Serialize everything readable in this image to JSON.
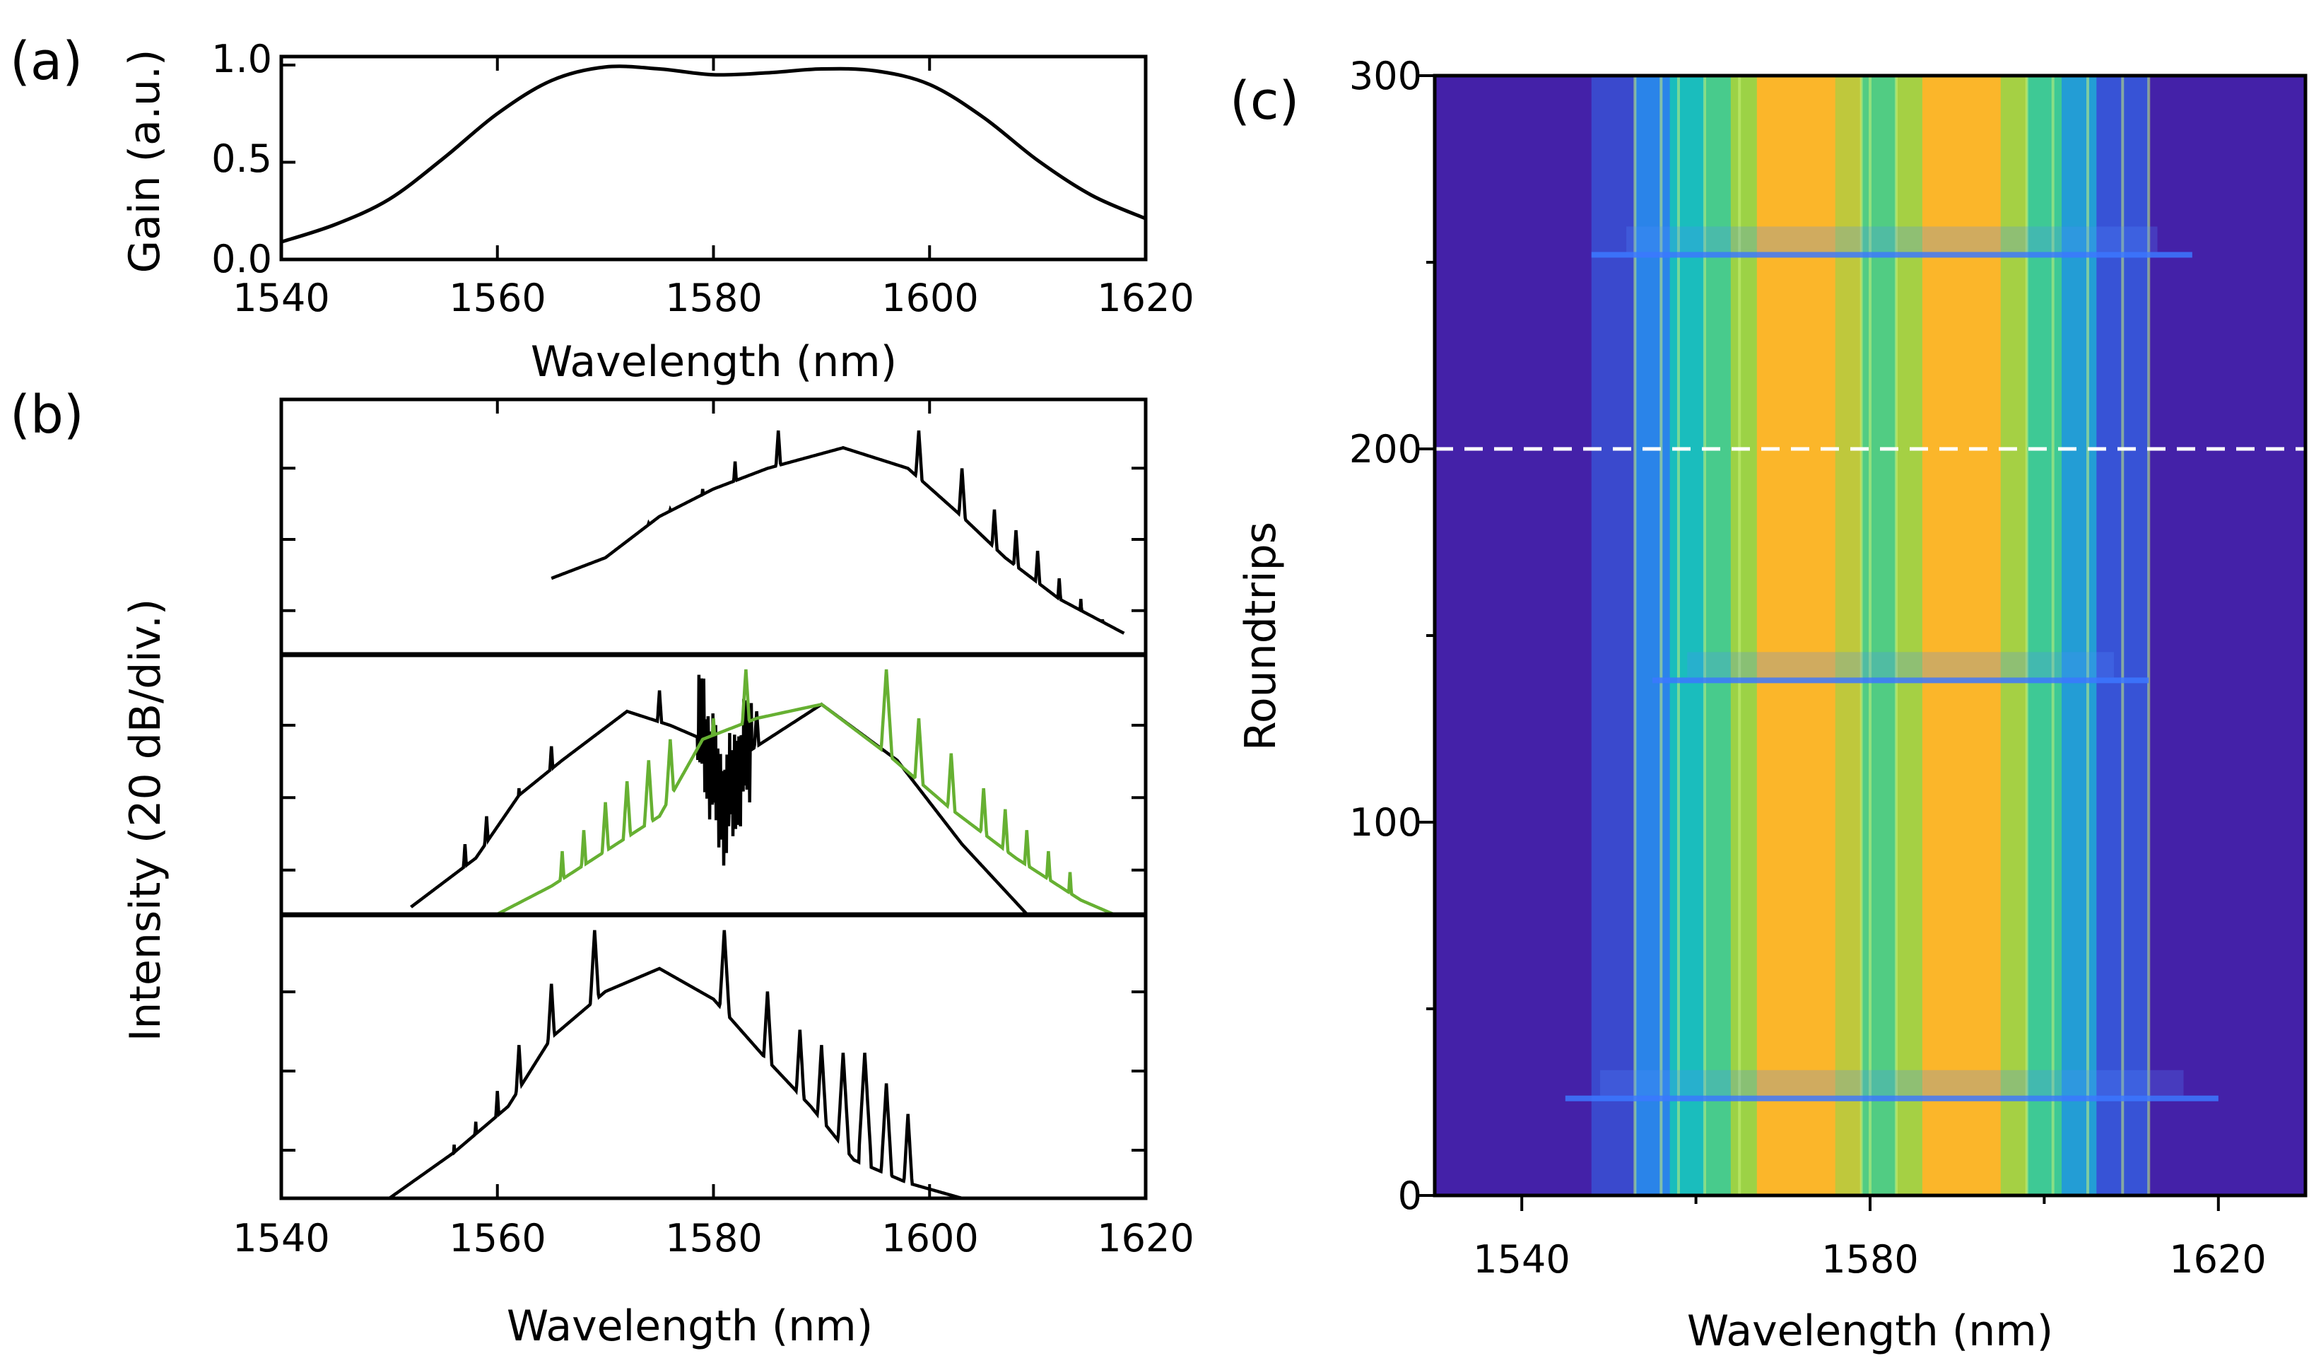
{
  "chart_data": [
    {
      "id": "a",
      "panel_label": "(a)",
      "type": "line",
      "xlabel": "Wavelength (nm)",
      "ylabel": "Gain (a.u.)",
      "xlim": [
        1540,
        1620
      ],
      "ylim": [
        0,
        1.0
      ],
      "xticks": [
        "1540",
        "1560",
        "1580",
        "1600",
        "1620"
      ],
      "yticks": [
        "0.0",
        "0.5",
        "1.0"
      ],
      "series": [
        {
          "name": "gain",
          "color": "#000000",
          "x": [
            1540,
            1545,
            1550,
            1555,
            1560,
            1565,
            1570,
            1575,
            1580,
            1585,
            1590,
            1595,
            1600,
            1605,
            1610,
            1615,
            1620
          ],
          "y": [
            0.09,
            0.18,
            0.31,
            0.52,
            0.75,
            0.92,
            0.99,
            0.98,
            0.95,
            0.96,
            0.98,
            0.97,
            0.9,
            0.73,
            0.51,
            0.33,
            0.21
          ]
        }
      ]
    },
    {
      "id": "b",
      "panel_label": "(b)",
      "type": "line",
      "xlabel": "Wavelength (nm)",
      "ylabel": "Intensity (20 dB/div.)",
      "xlim": [
        1540,
        1620
      ],
      "xticks": [
        "1540",
        "1560",
        "1580",
        "1600",
        "1620"
      ],
      "subplots": [
        {
          "name": "top",
          "series": [
            {
              "name": "spectrum",
              "color": "#000000",
              "envelope": [
                {
                  "x": 1565,
                  "y": -1.9
                },
                {
                  "x": 1570,
                  "y": -1.6
                },
                {
                  "x": 1575,
                  "y": -1.0
                },
                {
                  "x": 1580,
                  "y": -0.6
                },
                {
                  "x": 1585,
                  "y": -0.3
                },
                {
                  "x": 1592,
                  "y": 0.0
                },
                {
                  "x": 1598,
                  "y": -0.3
                },
                {
                  "x": 1603,
                  "y": -1.0
                },
                {
                  "x": 1607,
                  "y": -1.6
                },
                {
                  "x": 1612,
                  "y": -2.2
                },
                {
                  "x": 1618,
                  "y": -2.7
                }
              ],
              "peaks": [
                {
                  "x": 1586,
                  "y": 0.25
                },
                {
                  "x": 1599,
                  "y": 0.25
                },
                {
                  "x": 1582,
                  "y": -0.2
                },
                {
                  "x": 1603,
                  "y": -0.3
                },
                {
                  "x": 1579,
                  "y": -0.6
                },
                {
                  "x": 1606,
                  "y": -0.9
                },
                {
                  "x": 1576,
                  "y": -0.9
                },
                {
                  "x": 1608,
                  "y": -1.2
                },
                {
                  "x": 1574,
                  "y": -1.1
                },
                {
                  "x": 1610,
                  "y": -1.5
                },
                {
                  "x": 1572,
                  "y": -1.5
                },
                {
                  "x": 1612,
                  "y": -1.9
                },
                {
                  "x": 1570,
                  "y": -1.8
                },
                {
                  "x": 1614,
                  "y": -2.2
                },
                {
                  "x": 1568,
                  "y": -2.1
                },
                {
                  "x": 1616,
                  "y": -2.5
                }
              ]
            }
          ]
        },
        {
          "name": "middle",
          "series": [
            {
              "name": "black spectrum",
              "color": "#000000",
              "envelope": [
                {
                  "x": 1552,
                  "y": -2.9
                },
                {
                  "x": 1558,
                  "y": -2.2
                },
                {
                  "x": 1562,
                  "y": -1.3
                },
                {
                  "x": 1566,
                  "y": -0.8
                },
                {
                  "x": 1572,
                  "y": -0.1
                },
                {
                  "x": 1576,
                  "y": -0.3
                },
                {
                  "x": 1579,
                  "y": -0.5
                },
                {
                  "x": 1581,
                  "y": -1.5
                },
                {
                  "x": 1583,
                  "y": -0.7
                },
                {
                  "x": 1590,
                  "y": 0.0
                },
                {
                  "x": 1597,
                  "y": -0.8
                },
                {
                  "x": 1603,
                  "y": -2.0
                },
                {
                  "x": 1609,
                  "y": -3.0
                }
              ],
              "peaks": [
                {
                  "x": 1557,
                  "y": -2.0
                },
                {
                  "x": 1559,
                  "y": -1.6
                },
                {
                  "x": 1562,
                  "y": -1.2
                },
                {
                  "x": 1565,
                  "y": -0.6
                },
                {
                  "x": 1575,
                  "y": 0.2
                },
                {
                  "x": 1579,
                  "y": 0.0
                },
                {
                  "x": 1584,
                  "y": -0.1
                }
              ]
            },
            {
              "name": "green spectrum",
              "color": "#66b032",
              "envelope": [
                {
                  "x": 1560,
                  "y": -3.0
                },
                {
                  "x": 1565,
                  "y": -2.6
                },
                {
                  "x": 1570,
                  "y": -2.1
                },
                {
                  "x": 1575,
                  "y": -1.6
                },
                {
                  "x": 1579,
                  "y": -0.5
                },
                {
                  "x": 1584,
                  "y": -0.2
                },
                {
                  "x": 1590,
                  "y": 0.0
                },
                {
                  "x": 1596,
                  "y": -0.7
                },
                {
                  "x": 1602,
                  "y": -1.5
                },
                {
                  "x": 1608,
                  "y": -2.2
                },
                {
                  "x": 1614,
                  "y": -2.8
                },
                {
                  "x": 1617,
                  "y": -3.0
                }
              ],
              "peaks": [
                {
                  "x": 1583,
                  "y": 0.5
                },
                {
                  "x": 1596,
                  "y": 0.5
                },
                {
                  "x": 1580,
                  "y": -0.2
                },
                {
                  "x": 1599,
                  "y": -0.2
                },
                {
                  "x": 1576,
                  "y": -0.5
                },
                {
                  "x": 1602,
                  "y": -0.7
                },
                {
                  "x": 1574,
                  "y": -0.8
                },
                {
                  "x": 1605,
                  "y": -1.2
                },
                {
                  "x": 1572,
                  "y": -1.1
                },
                {
                  "x": 1607,
                  "y": -1.5
                },
                {
                  "x": 1570,
                  "y": -1.4
                },
                {
                  "x": 1609,
                  "y": -1.8
                },
                {
                  "x": 1568,
                  "y": -1.8
                },
                {
                  "x": 1611,
                  "y": -2.1
                },
                {
                  "x": 1566,
                  "y": -2.1
                },
                {
                  "x": 1613,
                  "y": -2.4
                }
              ]
            }
          ]
        },
        {
          "name": "bottom",
          "series": [
            {
              "name": "spectrum",
              "color": "#000000",
              "envelope": [
                {
                  "x": 1550,
                  "y": -3.0
                },
                {
                  "x": 1556,
                  "y": -2.4
                },
                {
                  "x": 1561,
                  "y": -1.8
                },
                {
                  "x": 1565,
                  "y": -0.9
                },
                {
                  "x": 1570,
                  "y": -0.3
                },
                {
                  "x": 1575,
                  "y": 0.0
                },
                {
                  "x": 1580,
                  "y": -0.4
                },
                {
                  "x": 1585,
                  "y": -1.2
                },
                {
                  "x": 1589,
                  "y": -1.8
                },
                {
                  "x": 1593,
                  "y": -2.5
                },
                {
                  "x": 1598,
                  "y": -2.8
                },
                {
                  "x": 1603,
                  "y": -3.0
                }
              ],
              "peaks": [
                {
                  "x": 1569,
                  "y": 0.5
                },
                {
                  "x": 1581,
                  "y": 0.5
                },
                {
                  "x": 1565,
                  "y": -0.2
                },
                {
                  "x": 1585,
                  "y": -0.3
                },
                {
                  "x": 1562,
                  "y": -1.0
                },
                {
                  "x": 1588,
                  "y": -0.8
                },
                {
                  "x": 1560,
                  "y": -1.6
                },
                {
                  "x": 1590,
                  "y": -1.0
                },
                {
                  "x": 1558,
                  "y": -2.0
                },
                {
                  "x": 1592,
                  "y": -1.1
                },
                {
                  "x": 1556,
                  "y": -2.3
                },
                {
                  "x": 1594,
                  "y": -1.1
                },
                {
                  "x": 1596,
                  "y": -1.5
                },
                {
                  "x": 1598,
                  "y": -1.9
                }
              ]
            }
          ]
        }
      ]
    },
    {
      "id": "c",
      "panel_label": "(c)",
      "type": "heatmap",
      "xlabel": "Wavelength (nm)",
      "ylabel": "Roundtrips",
      "xlim": [
        1530,
        1630
      ],
      "ylim": [
        0,
        300
      ],
      "xticks": [
        "1540",
        "1580",
        "1620"
      ],
      "yticks": [
        "0",
        "100",
        "200",
        "300"
      ],
      "yticks_minor": [
        50,
        150,
        250
      ],
      "colormap": [
        "#4421a8",
        "#2f74f5",
        "#18c3b8",
        "#8fd64a",
        "#fbb62a"
      ],
      "spectral_bands": [
        {
          "from": 1530,
          "to": 1548,
          "level": 0.0
        },
        {
          "from": 1548,
          "to": 1553,
          "level": 0.12
        },
        {
          "from": 1553,
          "to": 1557,
          "level": 0.3
        },
        {
          "from": 1557,
          "to": 1561,
          "level": 0.48
        },
        {
          "from": 1561,
          "to": 1564,
          "level": 0.6
        },
        {
          "from": 1564,
          "to": 1567,
          "level": 0.78
        },
        {
          "from": 1567,
          "to": 1576,
          "level": 1.0
        },
        {
          "from": 1576,
          "to": 1579,
          "level": 0.86
        },
        {
          "from": 1579,
          "to": 1583,
          "level": 0.62
        },
        {
          "from": 1583,
          "to": 1586,
          "level": 0.8
        },
        {
          "from": 1586,
          "to": 1595,
          "level": 1.0
        },
        {
          "from": 1595,
          "to": 1598,
          "level": 0.8
        },
        {
          "from": 1598,
          "to": 1602,
          "level": 0.58
        },
        {
          "from": 1602,
          "to": 1606,
          "level": 0.38
        },
        {
          "from": 1606,
          "to": 1612,
          "level": 0.15
        },
        {
          "from": 1612,
          "to": 1630,
          "level": 0.0
        }
      ],
      "sideband_lines": [
        1553,
        1556,
        1558,
        1561,
        1565,
        1579,
        1580,
        1583,
        1598,
        1601,
        1605,
        1609,
        1612
      ],
      "burst_events": [
        {
          "roundtrip": 26,
          "from": 1545,
          "to": 1620
        },
        {
          "roundtrip": 138,
          "from": 1555,
          "to": 1612
        },
        {
          "roundtrip": 252,
          "from": 1548,
          "to": 1617
        }
      ],
      "annotation": {
        "type": "dashed-line",
        "roundtrip": 200,
        "color": "#ffffff"
      }
    }
  ]
}
